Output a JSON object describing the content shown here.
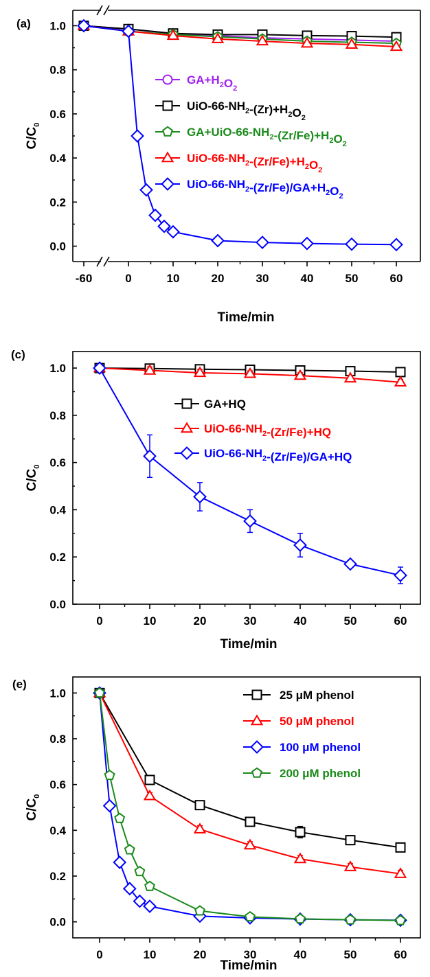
{
  "chart_data": [
    {
      "panel_label": "(a)",
      "type": "line",
      "xlabel": "Time/min",
      "ylabel": "C/C0",
      "x_ticks": [
        "-60",
        "0",
        "10",
        "20",
        "30",
        "40",
        "50",
        "60"
      ],
      "y_ticks": [
        "0.0",
        "0.2",
        "0.4",
        "0.6",
        "0.8",
        "1.0"
      ],
      "xlim": [
        -60,
        60
      ],
      "ylim": [
        -0.07,
        1.07
      ],
      "x_axis_break": true,
      "grid": false,
      "legend_position": "center-right",
      "series": [
        {
          "name": "GA+H2O2",
          "color": "#a020f0",
          "marker": "circle",
          "x": [
            -60,
            0,
            10,
            20,
            30,
            40,
            50,
            60
          ],
          "y": [
            1.0,
            0.985,
            0.965,
            0.955,
            0.945,
            0.94,
            0.935,
            0.93
          ]
        },
        {
          "name": "UiO-66-NH2-(Zr)+H2O2",
          "color": "#000000",
          "marker": "square",
          "x": [
            -60,
            0,
            10,
            20,
            30,
            40,
            50,
            60
          ],
          "y": [
            1.0,
            0.985,
            0.965,
            0.96,
            0.96,
            0.955,
            0.953,
            0.948
          ]
        },
        {
          "name": "GA+UiO-66-NH2-(Zr/Fe)+H2O2",
          "color": "#1a8a1a",
          "marker": "pentagon",
          "x": [
            -60,
            0,
            10,
            20,
            30,
            40,
            50,
            60
          ],
          "y": [
            1.0,
            0.975,
            0.96,
            0.95,
            0.94,
            0.93,
            0.925,
            0.92
          ]
        },
        {
          "name": "UiO-66-NH2-(Zr/Fe)+H2O2",
          "color": "#ff0000",
          "marker": "triangle",
          "x": [
            -60,
            0,
            10,
            20,
            30,
            40,
            50,
            60
          ],
          "y": [
            1.0,
            0.975,
            0.955,
            0.94,
            0.93,
            0.92,
            0.915,
            0.905
          ]
        },
        {
          "name": "UiO-66-NH2-(Zr/Fe)/GA+H2O2",
          "color": "#0000ff",
          "marker": "diamond",
          "x": [
            -60,
            0,
            2,
            4,
            6,
            8,
            10,
            20,
            30,
            40,
            50,
            60
          ],
          "y": [
            1.0,
            0.975,
            0.5,
            0.255,
            0.14,
            0.09,
            0.065,
            0.025,
            0.017,
            0.012,
            0.009,
            0.007
          ]
        }
      ]
    },
    {
      "panel_label": "(c)",
      "type": "line",
      "xlabel": "Time/min",
      "ylabel": "C/C0",
      "x_ticks": [
        "0",
        "10",
        "20",
        "30",
        "40",
        "50",
        "60"
      ],
      "y_ticks": [
        "0.0",
        "0.2",
        "0.4",
        "0.6",
        "0.8",
        "1.0"
      ],
      "xlim": [
        -7,
        67
      ],
      "ylim": [
        0,
        1.07
      ],
      "grid": false,
      "legend_position": "center-right",
      "series": [
        {
          "name": "GA+HQ",
          "color": "#000000",
          "marker": "square",
          "x": [
            0,
            10,
            20,
            30,
            40,
            50,
            60
          ],
          "y": [
            1.0,
            0.998,
            0.995,
            0.993,
            0.99,
            0.987,
            0.983
          ],
          "err": [
            0,
            0.008,
            0.006,
            0.006,
            0.006,
            0.006,
            0.006
          ]
        },
        {
          "name": "UiO-66-NH2-(Zr/Fe)+HQ",
          "color": "#ff0000",
          "marker": "triangle",
          "x": [
            0,
            10,
            20,
            30,
            40,
            50,
            60
          ],
          "y": [
            1.0,
            0.99,
            0.98,
            0.976,
            0.968,
            0.957,
            0.94
          ],
          "err": [
            0,
            0.015,
            0.015,
            0.012,
            0.012,
            0.012,
            0.012
          ]
        },
        {
          "name": "UiO-66-NH2-(Zr/Fe)/GA+HQ",
          "color": "#0000ff",
          "marker": "diamond",
          "x": [
            0,
            10,
            20,
            30,
            40,
            50,
            60
          ],
          "y": [
            1.0,
            0.627,
            0.455,
            0.352,
            0.25,
            0.17,
            0.122
          ],
          "err": [
            0,
            0.09,
            0.06,
            0.048,
            0.05,
            0.008,
            0.035
          ]
        }
      ]
    },
    {
      "panel_label": "(e)",
      "type": "line",
      "xlabel": "Time/min",
      "ylabel": "C/C0",
      "x_ticks": [
        "0",
        "10",
        "20",
        "30",
        "40",
        "50",
        "60"
      ],
      "y_ticks": [
        "0.0",
        "0.2",
        "0.4",
        "0.6",
        "0.8",
        "1.0"
      ],
      "xlim": [
        -7,
        67
      ],
      "ylim": [
        -0.07,
        1.07
      ],
      "grid": false,
      "legend_position": "top-right",
      "series": [
        {
          "name": "25 μM phenol",
          "color": "#000000",
          "marker": "square",
          "x": [
            0,
            10,
            20,
            30,
            40,
            50,
            60
          ],
          "y": [
            1.0,
            0.62,
            0.51,
            0.437,
            0.392,
            0.357,
            0.325
          ],
          "err": [
            0,
            0.015,
            0.015,
            0.02,
            0.025,
            0.02,
            0.015
          ]
        },
        {
          "name": "50 μM phenol",
          "color": "#ff0000",
          "marker": "triangle",
          "x": [
            0,
            10,
            20,
            30,
            40,
            50,
            60
          ],
          "y": [
            1.0,
            0.55,
            0.405,
            0.335,
            0.275,
            0.24,
            0.21
          ],
          "err": [
            0,
            0.015,
            0.015,
            0.015,
            0.015,
            0.015,
            0.015
          ]
        },
        {
          "name": "100 μM phenol",
          "color": "#0000ff",
          "marker": "diamond",
          "x": [
            0,
            2,
            4,
            6,
            8,
            10,
            20,
            30,
            40,
            50,
            60
          ],
          "y": [
            1.0,
            0.507,
            0.26,
            0.145,
            0.09,
            0.068,
            0.025,
            0.017,
            0.012,
            0.009,
            0.007
          ],
          "err": [
            0,
            0,
            0,
            0,
            0,
            0,
            0,
            0,
            0,
            0,
            0
          ]
        },
        {
          "name": "200 μM phenol",
          "color": "#1a8a1a",
          "marker": "pentagon",
          "x": [
            0,
            2,
            4,
            6,
            8,
            10,
            20,
            30,
            40,
            50,
            60
          ],
          "y": [
            1.0,
            0.64,
            0.452,
            0.315,
            0.22,
            0.155,
            0.048,
            0.022,
            0.013,
            0.009,
            0.006
          ],
          "err": [
            0,
            0,
            0,
            0,
            0,
            0,
            0,
            0,
            0,
            0,
            0
          ]
        }
      ]
    }
  ]
}
